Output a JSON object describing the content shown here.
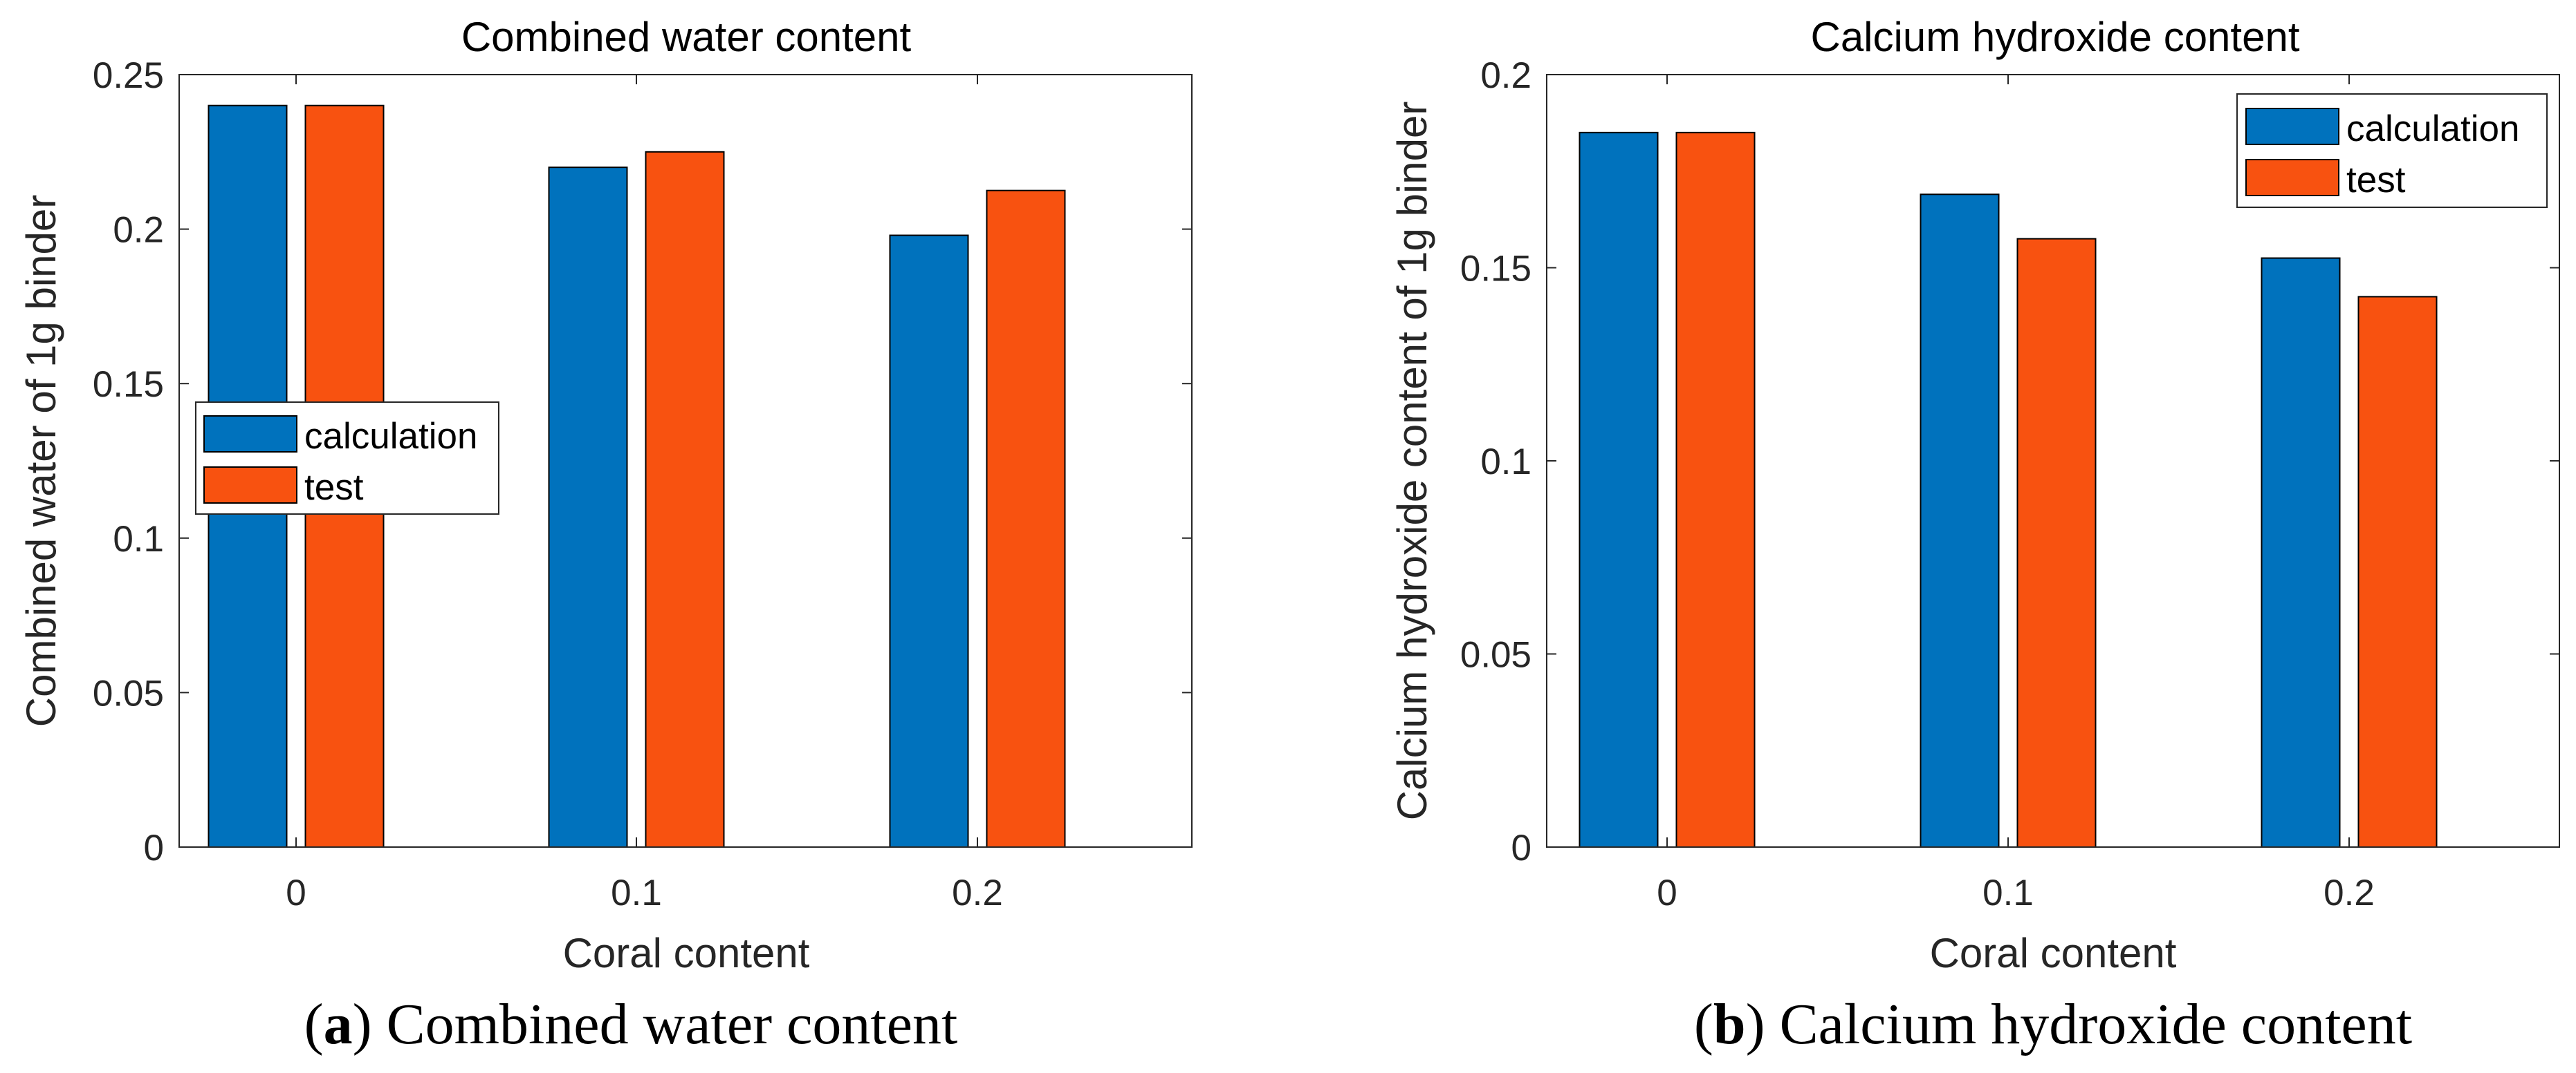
{
  "colors": {
    "calculation": "#0072BD",
    "test": "#F85210"
  },
  "chart_data": [
    {
      "type": "bar",
      "title": "Combined water content",
      "xlabel": "Coral content",
      "ylabel": "Combined water of 1g binder",
      "categories": [
        "0",
        "0.1",
        "0.2"
      ],
      "series": [
        {
          "name": "calculation",
          "values": [
            0.24,
            0.22,
            0.198
          ]
        },
        {
          "name": "test",
          "values": [
            0.24,
            0.225,
            0.2125
          ]
        }
      ],
      "ylim": [
        0,
        0.25
      ],
      "yticks": [
        0,
        0.05,
        0.1,
        0.15,
        0.2,
        0.25
      ],
      "ytick_labels": [
        "0",
        "0.05",
        "0.1",
        "0.15",
        "0.2",
        "0.25"
      ],
      "legend_position": "middle-left",
      "grid": false,
      "caption": {
        "open": "(",
        "letter": "a",
        "close": ") ",
        "text": "Combined water content"
      }
    },
    {
      "type": "bar",
      "title": "Calcium hydroxide content",
      "xlabel": "Coral content",
      "ylabel": "Calcium hydroxide content of 1g binder",
      "categories": [
        "0",
        "0.1",
        "0.2"
      ],
      "series": [
        {
          "name": "calculation",
          "values": [
            0.185,
            0.169,
            0.1525
          ]
        },
        {
          "name": "test",
          "values": [
            0.185,
            0.1575,
            0.1425
          ]
        }
      ],
      "ylim": [
        0,
        0.2
      ],
      "yticks": [
        0,
        0.05,
        0.1,
        0.15,
        0.2
      ],
      "ytick_labels": [
        "0",
        "0.05",
        "0.1",
        "0.15",
        "0.2"
      ],
      "legend_position": "top-right",
      "grid": false,
      "caption": {
        "open": "(",
        "letter": "b",
        "close": ") ",
        "text": "Calcium hydroxide content"
      }
    }
  ]
}
